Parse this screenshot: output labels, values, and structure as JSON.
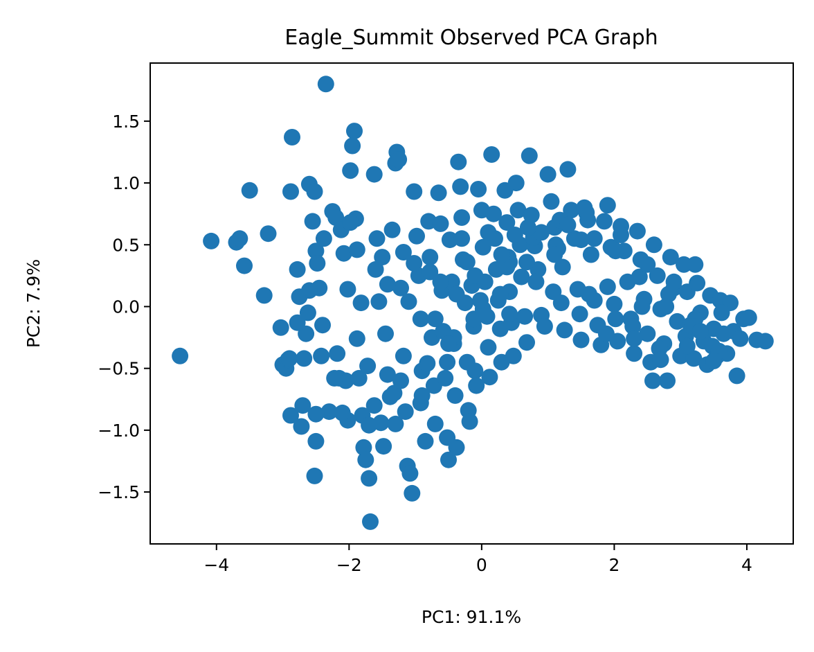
{
  "chart_data": {
    "type": "scatter",
    "title": "Eagle_Summit Observed PCA Graph",
    "xlabel": "PC1: 91.1%",
    "ylabel": "PC2: 7.9%",
    "xlim": [
      -5.0,
      4.7
    ],
    "ylim": [
      -1.92,
      1.97
    ],
    "xticks": [
      -4,
      -2,
      0,
      2,
      4
    ],
    "yticks": [
      -1.5,
      -1.0,
      -0.5,
      0.0,
      0.5,
      1.0,
      1.5
    ],
    "xtick_labels": [
      "−4",
      "−2",
      "0",
      "2",
      "4"
    ],
    "ytick_labels": [
      "−1.5",
      "−1.0",
      "−0.5",
      "0.0",
      "0.5",
      "1.0",
      "1.5"
    ],
    "grid": false,
    "marker_color": "#1f77b4",
    "points": [
      [
        -4.55,
        -0.4
      ],
      [
        -4.08,
        0.53
      ],
      [
        -3.7,
        0.52
      ],
      [
        -3.65,
        0.55
      ],
      [
        -3.58,
        0.33
      ],
      [
        -3.5,
        0.94
      ],
      [
        -3.28,
        0.09
      ],
      [
        -3.22,
        0.59
      ],
      [
        -3.03,
        -0.17
      ],
      [
        -3.0,
        -0.47
      ],
      [
        -2.95,
        -0.5
      ],
      [
        -2.92,
        -0.43
      ],
      [
        -2.88,
        -0.88
      ],
      [
        -2.86,
        1.37
      ],
      [
        -2.88,
        0.93
      ],
      [
        -2.78,
        0.3
      ],
      [
        -2.75,
        0.08
      ],
      [
        -2.72,
        -0.97
      ],
      [
        -2.7,
        -0.8
      ],
      [
        -2.68,
        -0.42
      ],
      [
        -2.65,
        -0.22
      ],
      [
        -2.6,
        0.99
      ],
      [
        -2.55,
        0.69
      ],
      [
        -2.52,
        0.93
      ],
      [
        -2.5,
        0.45
      ],
      [
        -2.48,
        0.35
      ],
      [
        -2.45,
        0.15
      ],
      [
        -2.42,
        -0.4
      ],
      [
        -2.5,
        -1.09
      ],
      [
        -2.52,
        -1.37
      ],
      [
        -2.4,
        -0.15
      ],
      [
        -2.35,
        1.8
      ],
      [
        -2.3,
        -0.85
      ],
      [
        -2.25,
        0.77
      ],
      [
        -2.2,
        0.72
      ],
      [
        -2.18,
        -0.38
      ],
      [
        -2.15,
        -0.58
      ],
      [
        -2.12,
        0.62
      ],
      [
        -2.08,
        0.43
      ],
      [
        -2.05,
        -0.6
      ],
      [
        -2.02,
        0.14
      ],
      [
        -1.98,
        1.1
      ],
      [
        -1.95,
        1.3
      ],
      [
        -1.92,
        1.42
      ],
      [
        -1.9,
        0.71
      ],
      [
        -1.88,
        0.46
      ],
      [
        -1.88,
        -0.26
      ],
      [
        -1.85,
        -0.58
      ],
      [
        -1.8,
        -0.88
      ],
      [
        -1.78,
        -1.14
      ],
      [
        -1.75,
        -1.24
      ],
      [
        -1.7,
        -1.39
      ],
      [
        -1.68,
        -1.74
      ],
      [
        -1.62,
        1.07
      ],
      [
        -1.6,
        0.3
      ],
      [
        -1.55,
        0.04
      ],
      [
        -1.52,
        -0.94
      ],
      [
        -1.48,
        -1.13
      ],
      [
        -1.45,
        -0.22
      ],
      [
        -1.42,
        -0.55
      ],
      [
        -1.38,
        -0.73
      ],
      [
        -1.35,
        0.62
      ],
      [
        -1.3,
        1.16
      ],
      [
        -1.28,
        1.25
      ],
      [
        -1.25,
        1.19
      ],
      [
        -1.22,
        0.15
      ],
      [
        -1.18,
        -0.4
      ],
      [
        -1.15,
        -0.85
      ],
      [
        -1.12,
        -1.29
      ],
      [
        -1.08,
        -1.35
      ],
      [
        -1.05,
        -1.51
      ],
      [
        -1.02,
        0.93
      ],
      [
        -0.98,
        0.57
      ],
      [
        -0.95,
        0.25
      ],
      [
        -0.92,
        -0.1
      ],
      [
        -0.9,
        -0.52
      ],
      [
        -0.85,
        -1.09
      ],
      [
        -0.8,
        0.69
      ],
      [
        -0.78,
        0.4
      ],
      [
        -0.75,
        -0.25
      ],
      [
        -0.72,
        -0.64
      ],
      [
        -0.7,
        -0.95
      ],
      [
        -0.65,
        0.92
      ],
      [
        -0.62,
        0.67
      ],
      [
        -0.6,
        0.13
      ],
      [
        -0.58,
        -0.2
      ],
      [
        -0.55,
        -0.58
      ],
      [
        -0.52,
        -1.06
      ],
      [
        -0.5,
        -1.24
      ],
      [
        -0.48,
        0.54
      ],
      [
        -0.45,
        0.2
      ],
      [
        -0.42,
        -0.3
      ],
      [
        -0.4,
        -0.72
      ],
      [
        -0.38,
        -1.14
      ],
      [
        -0.35,
        1.17
      ],
      [
        -0.32,
        0.97
      ],
      [
        -0.3,
        0.72
      ],
      [
        -0.28,
        0.38
      ],
      [
        -0.25,
        0.03
      ],
      [
        -0.22,
        -0.45
      ],
      [
        -0.2,
        -0.84
      ],
      [
        -0.18,
        -0.93
      ],
      [
        -0.15,
        0.17
      ],
      [
        -0.12,
        -0.16
      ],
      [
        -0.1,
        -0.52
      ],
      [
        -0.08,
        -0.64
      ],
      [
        -0.05,
        0.95
      ],
      [
        0.0,
        0.78
      ],
      [
        0.02,
        0.48
      ],
      [
        0.05,
        0.2
      ],
      [
        0.08,
        -0.08
      ],
      [
        0.1,
        -0.33
      ],
      [
        0.12,
        -0.57
      ],
      [
        0.15,
        1.23
      ],
      [
        0.18,
        0.75
      ],
      [
        0.2,
        0.55
      ],
      [
        0.22,
        0.3
      ],
      [
        0.25,
        0.05
      ],
      [
        0.28,
        -0.18
      ],
      [
        0.3,
        -0.45
      ],
      [
        0.35,
        0.94
      ],
      [
        0.38,
        0.68
      ],
      [
        0.4,
        0.4
      ],
      [
        0.42,
        0.12
      ],
      [
        0.45,
        -0.13
      ],
      [
        0.48,
        -0.4
      ],
      [
        0.52,
        1.0
      ],
      [
        0.55,
        0.78
      ],
      [
        0.58,
        0.5
      ],
      [
        0.6,
        0.24
      ],
      [
        0.65,
        -0.08
      ],
      [
        0.68,
        -0.29
      ],
      [
        0.72,
        1.22
      ],
      [
        0.75,
        0.74
      ],
      [
        0.8,
        0.49
      ],
      [
        0.85,
        0.3
      ],
      [
        0.9,
        -0.07
      ],
      [
        0.95,
        -0.16
      ],
      [
        1.0,
        1.07
      ],
      [
        1.05,
        0.85
      ],
      [
        1.1,
        0.64
      ],
      [
        1.15,
        0.47
      ],
      [
        1.2,
        0.03
      ],
      [
        1.25,
        -0.19
      ],
      [
        1.3,
        1.11
      ],
      [
        1.35,
        0.78
      ],
      [
        1.4,
        0.55
      ],
      [
        1.45,
        0.14
      ],
      [
        1.5,
        -0.27
      ],
      [
        1.55,
        0.8
      ],
      [
        1.6,
        0.7
      ],
      [
        1.65,
        0.42
      ],
      [
        1.7,
        0.05
      ],
      [
        1.75,
        -0.15
      ],
      [
        1.8,
        -0.31
      ],
      [
        1.85,
        0.69
      ],
      [
        1.9,
        0.82
      ],
      [
        1.95,
        0.48
      ],
      [
        2.0,
        0.02
      ],
      [
        2.05,
        -0.28
      ],
      [
        2.1,
        0.65
      ],
      [
        2.15,
        0.45
      ],
      [
        2.2,
        0.2
      ],
      [
        2.25,
        -0.1
      ],
      [
        2.3,
        -0.38
      ],
      [
        2.35,
        0.61
      ],
      [
        2.4,
        0.38
      ],
      [
        2.45,
        0.06
      ],
      [
        2.5,
        -0.22
      ],
      [
        2.55,
        -0.45
      ],
      [
        2.6,
        0.5
      ],
      [
        2.65,
        0.25
      ],
      [
        2.7,
        -0.02
      ],
      [
        2.75,
        -0.3
      ],
      [
        2.8,
        -0.6
      ],
      [
        2.85,
        0.4
      ],
      [
        2.9,
        0.15
      ],
      [
        2.95,
        -0.12
      ],
      [
        3.0,
        -0.4
      ],
      [
        3.05,
        0.34
      ],
      [
        3.1,
        0.12
      ],
      [
        3.15,
        -0.15
      ],
      [
        3.2,
        -0.42
      ],
      [
        3.25,
        0.19
      ],
      [
        3.3,
        -0.05
      ],
      [
        3.35,
        -0.28
      ],
      [
        3.4,
        -0.47
      ],
      [
        3.45,
        0.09
      ],
      [
        3.5,
        -0.18
      ],
      [
        3.55,
        -0.4
      ],
      [
        3.6,
        0.05
      ],
      [
        3.65,
        -0.22
      ],
      [
        3.7,
        -0.38
      ],
      [
        3.75,
        0.03
      ],
      [
        3.8,
        -0.2
      ],
      [
        3.85,
        -0.56
      ],
      [
        3.9,
        -0.26
      ],
      [
        3.95,
        -0.1
      ],
      [
        4.03,
        -0.09
      ],
      [
        4.15,
        -0.27
      ],
      [
        4.28,
        -0.28
      ],
      [
        2.58,
        -0.6
      ],
      [
        3.22,
        0.34
      ],
      [
        2.02,
        0.45
      ],
      [
        1.12,
        0.5
      ],
      [
        0.42,
        0.36
      ],
      [
        -0.22,
        0.36
      ],
      [
        -0.62,
        0.2
      ],
      [
        -1.02,
        0.35
      ],
      [
        -1.42,
        0.18
      ],
      [
        -1.82,
        0.03
      ],
      [
        -2.62,
        -0.05
      ],
      [
        -2.22,
        -0.58
      ],
      [
        -1.72,
        -0.48
      ],
      [
        -1.32,
        -0.7
      ],
      [
        -0.92,
        -0.78
      ],
      [
        -0.52,
        -0.45
      ],
      [
        -0.12,
        -0.1
      ],
      [
        0.28,
        0.1
      ],
      [
        0.68,
        0.36
      ],
      [
        1.08,
        0.12
      ],
      [
        1.48,
        -0.06
      ],
      [
        1.88,
        -0.22
      ],
      [
        2.28,
        -0.16
      ],
      [
        2.68,
        -0.34
      ],
      [
        3.08,
        -0.24
      ],
      [
        3.48,
        -0.32
      ],
      [
        -2.78,
        -0.13
      ],
      [
        -2.38,
        0.55
      ],
      [
        -1.98,
        0.68
      ],
      [
        -1.58,
        0.55
      ],
      [
        -1.18,
        0.44
      ],
      [
        -0.78,
        0.28
      ],
      [
        -0.38,
        0.1
      ],
      [
        0.02,
        -0.02
      ],
      [
        0.42,
        -0.06
      ],
      [
        0.82,
        0.2
      ],
      [
        1.22,
        0.32
      ],
      [
        1.62,
        0.1
      ],
      [
        2.02,
        -0.1
      ],
      [
        2.42,
        0.0
      ],
      [
        2.82,
        0.1
      ],
      [
        3.22,
        -0.1
      ],
      [
        3.62,
        -0.05
      ],
      [
        -2.02,
        -0.92
      ],
      [
        -1.62,
        -0.8
      ],
      [
        -1.22,
        -0.6
      ],
      [
        -0.82,
        -0.46
      ],
      [
        -0.42,
        -0.25
      ],
      [
        -0.02,
        0.05
      ],
      [
        0.38,
        0.32
      ],
      [
        0.78,
        0.56
      ],
      [
        1.18,
        0.7
      ],
      [
        1.58,
        0.76
      ],
      [
        1.98,
        0.47
      ],
      [
        2.38,
        0.24
      ],
      [
        2.78,
        0.0
      ],
      [
        3.18,
        -0.16
      ],
      [
        3.58,
        -0.36
      ],
      [
        -2.6,
        0.13
      ],
      [
        -1.5,
        0.4
      ],
      [
        -1.1,
        0.04
      ],
      [
        -0.7,
        -0.1
      ],
      [
        -0.3,
        0.55
      ],
      [
        0.1,
        0.6
      ],
      [
        0.5,
        0.58
      ],
      [
        0.9,
        0.6
      ],
      [
        1.3,
        0.66
      ],
      [
        1.7,
        0.55
      ],
      [
        2.1,
        0.58
      ],
      [
        2.5,
        0.34
      ],
      [
        2.9,
        0.2
      ],
      [
        3.3,
        -0.2
      ],
      [
        -2.9,
        -0.42
      ],
      [
        -2.5,
        -0.87
      ],
      [
        -2.1,
        -0.86
      ],
      [
        -1.7,
        -0.96
      ],
      [
        -1.3,
        -0.95
      ],
      [
        -0.9,
        -0.72
      ],
      [
        -0.5,
        -0.3
      ],
      [
        -0.1,
        0.25
      ],
      [
        0.3,
        0.42
      ],
      [
        0.7,
        0.64
      ],
      [
        1.1,
        0.42
      ],
      [
        1.5,
        0.54
      ],
      [
        1.9,
        0.16
      ],
      [
        2.3,
        -0.26
      ],
      [
        2.7,
        -0.43
      ],
      [
        3.1,
        -0.32
      ],
      [
        3.5,
        -0.44
      ]
    ]
  }
}
